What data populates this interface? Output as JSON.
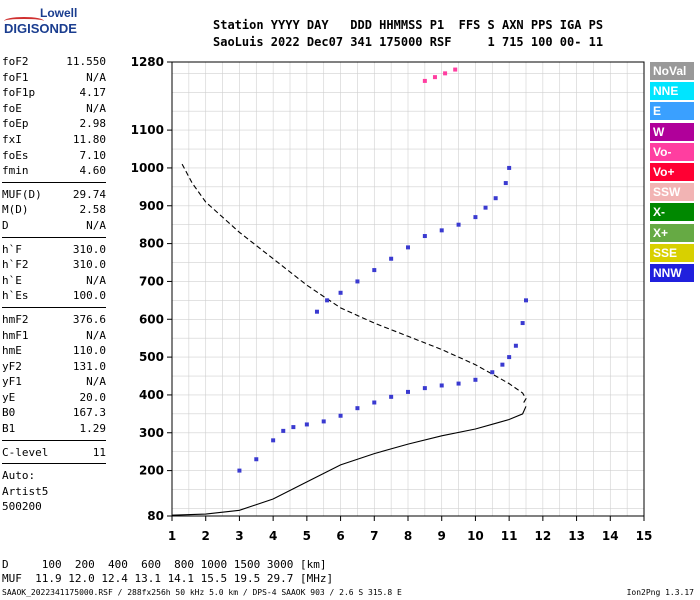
{
  "logo": {
    "top": "Lowell",
    "bottom": "DIGISONDE"
  },
  "header": {
    "line1": "Station YYYY DAY   DDD HHMMSS P1  FFS S AXN PPS IGA PS",
    "line2": "SaoLuis 2022 Dec07 341 175000 RSF     1 715 100 00- 11"
  },
  "params_a": [
    {
      "k": "foF2",
      "v": "11.550"
    },
    {
      "k": "foF1",
      "v": "N/A"
    },
    {
      "k": "foF1p",
      "v": "4.17"
    },
    {
      "k": "foE",
      "v": "N/A"
    },
    {
      "k": "foEp",
      "v": "2.98"
    },
    {
      "k": "fxI",
      "v": "11.80"
    },
    {
      "k": "foEs",
      "v": "7.10"
    },
    {
      "k": "fmin",
      "v": "4.60"
    }
  ],
  "params_b": [
    {
      "k": "MUF(D)",
      "v": "29.74"
    },
    {
      "k": "M(D)",
      "v": "2.58"
    },
    {
      "k": "D",
      "v": "N/A"
    }
  ],
  "params_c": [
    {
      "k": "h`F",
      "v": "310.0"
    },
    {
      "k": "h`F2",
      "v": "310.0"
    },
    {
      "k": "h`E",
      "v": "N/A"
    },
    {
      "k": "h`Es",
      "v": "100.0"
    }
  ],
  "params_d": [
    {
      "k": "hmF2",
      "v": "376.6"
    },
    {
      "k": "hmF1",
      "v": "N/A"
    },
    {
      "k": "hmE",
      "v": "110.0"
    },
    {
      "k": "yF2",
      "v": "131.0"
    },
    {
      "k": "yF1",
      "v": "N/A"
    },
    {
      "k": "yE",
      "v": "20.0"
    },
    {
      "k": "B0",
      "v": "167.3"
    },
    {
      "k": "B1",
      "v": "1.29"
    }
  ],
  "params_e": [
    {
      "k": "C-level",
      "v": "11"
    }
  ],
  "auto": {
    "line1": "Auto:",
    "line2": "Artist5",
    "line3": "500200"
  },
  "legend": [
    {
      "label": "NoVal",
      "color": "#999999"
    },
    {
      "label": "NNE",
      "color": "#00e5ff"
    },
    {
      "label": "E",
      "color": "#3aa0ff"
    },
    {
      "label": "W",
      "color": "#b0009a"
    },
    {
      "label": "Vo-",
      "color": "#ff3ea0"
    },
    {
      "label": "Vo+",
      "color": "#ff0033"
    },
    {
      "label": "SSW",
      "color": "#f2b4b4"
    },
    {
      "label": "X-",
      "color": "#008800"
    },
    {
      "label": "X+",
      "color": "#66aa44"
    },
    {
      "label": "SSE",
      "color": "#d8d000"
    },
    {
      "label": "NNW",
      "color": "#2020dd"
    }
  ],
  "bottom": {
    "d_line": "D     100  200  400  600  800 1000 1500 3000 [km]",
    "muf_line": "MUF  11.9 12.0 12.4 13.1 14.1 15.5 19.5 29.7 [MHz]"
  },
  "footer": {
    "left": "SAAOK_2022341175000.RSF / 288fx256h 50 kHz 5.0 km / DPS-4 SAAOK 903 / 2.6 S 315.8 E",
    "right": "Ion2Png 1.3.17"
  },
  "chart_data": {
    "type": "scatter",
    "xlim": [
      1,
      15
    ],
    "ylim": [
      80,
      1280
    ],
    "x_ticks": [
      1,
      2,
      3,
      4,
      5,
      6,
      7,
      8,
      9,
      10,
      11,
      12,
      13,
      14,
      15
    ],
    "y_ticks": [
      80,
      200,
      300,
      400,
      500,
      600,
      700,
      800,
      900,
      1000,
      1100,
      1280
    ],
    "grid": true,
    "series": [
      {
        "color": "#3a3ad0",
        "x": [
          3.0,
          3.5,
          4.0,
          4.3,
          4.6,
          5.0,
          5.5,
          6.0,
          6.5,
          7.0,
          7.5,
          8.0,
          8.5,
          9.0,
          9.5,
          10.0,
          10.5,
          10.8,
          11.0,
          11.2,
          11.4,
          11.5
        ],
        "y": [
          200,
          230,
          280,
          305,
          315,
          322,
          330,
          345,
          365,
          380,
          395,
          408,
          418,
          425,
          430,
          440,
          460,
          480,
          500,
          530,
          590,
          650
        ]
      },
      {
        "color": "#3a3ad0",
        "x": [
          5.3,
          5.6,
          6.0,
          6.5,
          7.0,
          7.5,
          8.0,
          8.5,
          9.0,
          9.5,
          10.0,
          10.3,
          10.6,
          10.9,
          11.0
        ],
        "y": [
          620,
          650,
          670,
          700,
          730,
          760,
          790,
          820,
          835,
          850,
          870,
          895,
          920,
          960,
          1000
        ]
      },
      {
        "color": "#ff3ea0",
        "x": [
          8.5,
          8.8,
          9.1,
          9.4
        ],
        "y": [
          1230,
          1240,
          1250,
          1260
        ]
      }
    ],
    "lines": [
      {
        "style": "dashed",
        "x": [
          1.3,
          1.6,
          2.0,
          3.0,
          4.0,
          5.0,
          6.0,
          7.0,
          8.0,
          9.0,
          10.0,
          10.6,
          11.0,
          11.4,
          11.5,
          11.4
        ],
        "y": [
          1010,
          960,
          910,
          830,
          760,
          690,
          630,
          590,
          555,
          520,
          480,
          450,
          430,
          405,
          390,
          375
        ]
      },
      {
        "style": "solid",
        "x": [
          1.0,
          2.0,
          3.0,
          4.0,
          5.0,
          6.0,
          7.0,
          8.0,
          9.0,
          10.0,
          10.6,
          11.0,
          11.4,
          11.5
        ],
        "y": [
          82,
          85,
          95,
          125,
          170,
          215,
          245,
          270,
          292,
          310,
          325,
          335,
          350,
          370
        ]
      }
    ]
  }
}
